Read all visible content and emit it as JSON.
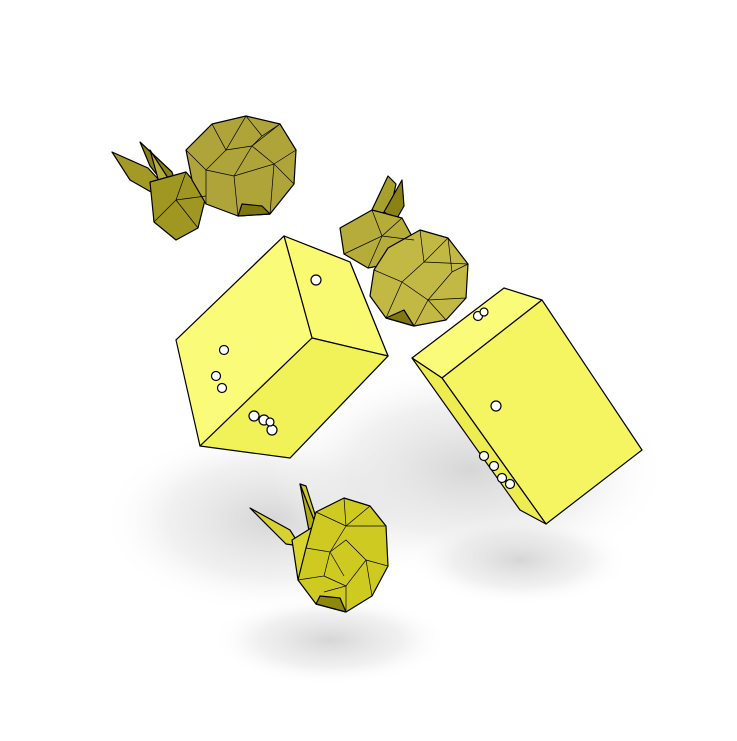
{
  "scene": {
    "background": "#ffffff",
    "shadow_color": "#d9d9d9",
    "objects": [
      {
        "kind": "bunny",
        "label": "bunny-upper-left",
        "color_light": "#b2a93a",
        "color_dark": "#7c740e"
      },
      {
        "kind": "bunny",
        "label": "bunny-middle",
        "color_light": "#c1b73c",
        "color_dark": "#837a12"
      },
      {
        "kind": "bunny",
        "label": "bunny-bottom",
        "color_light": "#d6d12a",
        "color_dark": "#8f8a0a"
      },
      {
        "kind": "die",
        "label": "die-left",
        "face_light": "#fbfb7a",
        "face_mid": "#f3f35e",
        "face_dark": "#e7e748"
      },
      {
        "kind": "die",
        "label": "die-right",
        "face_light": "#fbfb7a",
        "face_mid": "#f3f35e",
        "face_dark": "#e9e94e"
      }
    ]
  }
}
